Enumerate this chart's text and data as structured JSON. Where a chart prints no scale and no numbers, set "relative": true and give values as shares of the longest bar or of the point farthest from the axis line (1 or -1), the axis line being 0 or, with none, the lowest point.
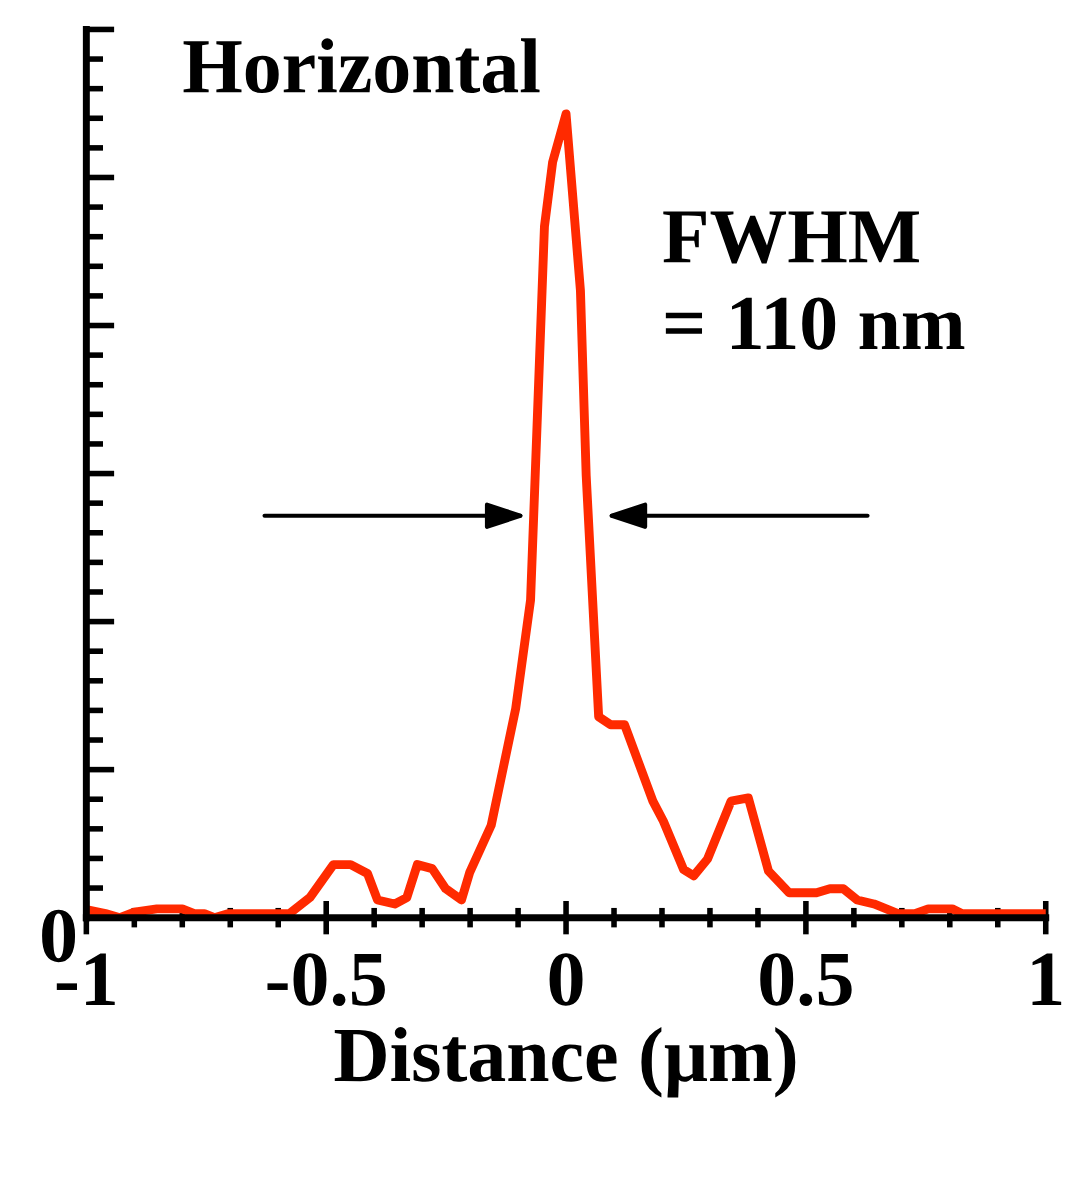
{
  "chart_data": {
    "type": "line",
    "title": "Horizontal",
    "xlabel": "Distance (μm)",
    "relative": true,
    "x": [
      -1.0,
      -0.96,
      -0.93,
      -0.9,
      -0.853,
      -0.8,
      -0.775,
      -0.754,
      -0.733,
      -0.705,
      -0.577,
      -0.534,
      -0.485,
      -0.449,
      -0.414,
      -0.393,
      -0.357,
      -0.332,
      -0.31,
      -0.279,
      -0.251,
      -0.218,
      -0.201,
      -0.156,
      -0.105,
      -0.074,
      -0.045,
      -0.028,
      0.0,
      0.03,
      0.042,
      0.068,
      0.093,
      0.122,
      0.181,
      0.203,
      0.245,
      0.266,
      0.295,
      0.344,
      0.38,
      0.422,
      0.465,
      0.522,
      0.55,
      0.578,
      0.607,
      0.642,
      0.692,
      0.727,
      0.755,
      0.805,
      0.826,
      1.0
    ],
    "series": [
      {
        "color": "#ff2a00",
        "values": [
          0.01,
          0.005,
          0.0,
          0.007,
          0.011,
          0.011,
          0.005,
          0.005,
          0.0,
          0.005,
          0.005,
          0.025,
          0.066,
          0.066,
          0.055,
          0.022,
          0.017,
          0.025,
          0.066,
          0.061,
          0.036,
          0.022,
          0.056,
          0.115,
          0.26,
          0.395,
          0.86,
          0.94,
          1.0,
          0.78,
          0.55,
          0.25,
          0.24,
          0.24,
          0.145,
          0.12,
          0.06,
          0.052,
          0.073,
          0.145,
          0.149,
          0.058,
          0.031,
          0.031,
          0.036,
          0.036,
          0.022,
          0.017,
          0.005,
          0.005,
          0.011,
          0.011,
          0.005,
          0.005
        ]
      }
    ],
    "xlim": [
      -1,
      1
    ],
    "xticks": [
      -1,
      -0.5,
      0,
      0.5,
      1
    ],
    "annotations": [
      {
        "text": "0",
        "x": -1,
        "y": 0
      },
      "FWHM\n= 110 nm"
    ],
    "grid": false,
    "legend": false,
    "marker": "none",
    "line_style": "solid"
  }
}
